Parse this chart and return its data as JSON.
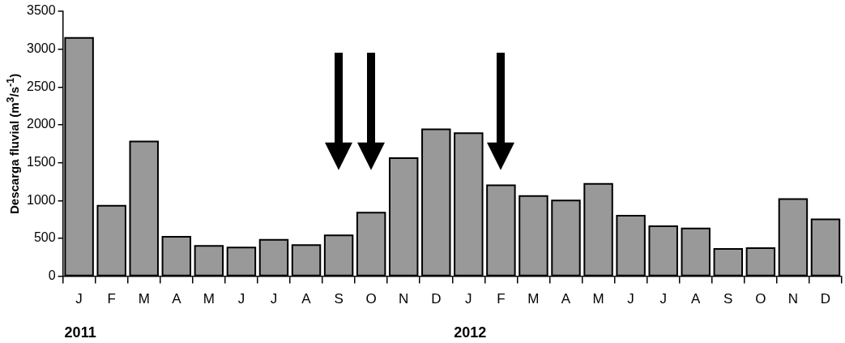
{
  "chart_data": {
    "type": "bar",
    "ylabel": "Descarga fluvial (m$^{3}$/s$^{-1}$)",
    "categories": [
      "J",
      "F",
      "M",
      "A",
      "M",
      "J",
      "J",
      "A",
      "S",
      "O",
      "N",
      "D",
      "J",
      "F",
      "M",
      "A",
      "M",
      "J",
      "J",
      "A",
      "S",
      "O",
      "N",
      "D"
    ],
    "values": [
      3150,
      930,
      1780,
      520,
      400,
      380,
      480,
      410,
      540,
      840,
      1560,
      1940,
      1890,
      1200,
      1060,
      1000,
      1220,
      800,
      660,
      630,
      360,
      370,
      1020,
      750
    ],
    "color": "#999999",
    "ylim": [
      0,
      3500
    ],
    "yticks": [
      0,
      500,
      1000,
      1500,
      2000,
      2500,
      3000,
      3500
    ],
    "annotations": [
      "2011",
      "2012"
    ]
  }
}
